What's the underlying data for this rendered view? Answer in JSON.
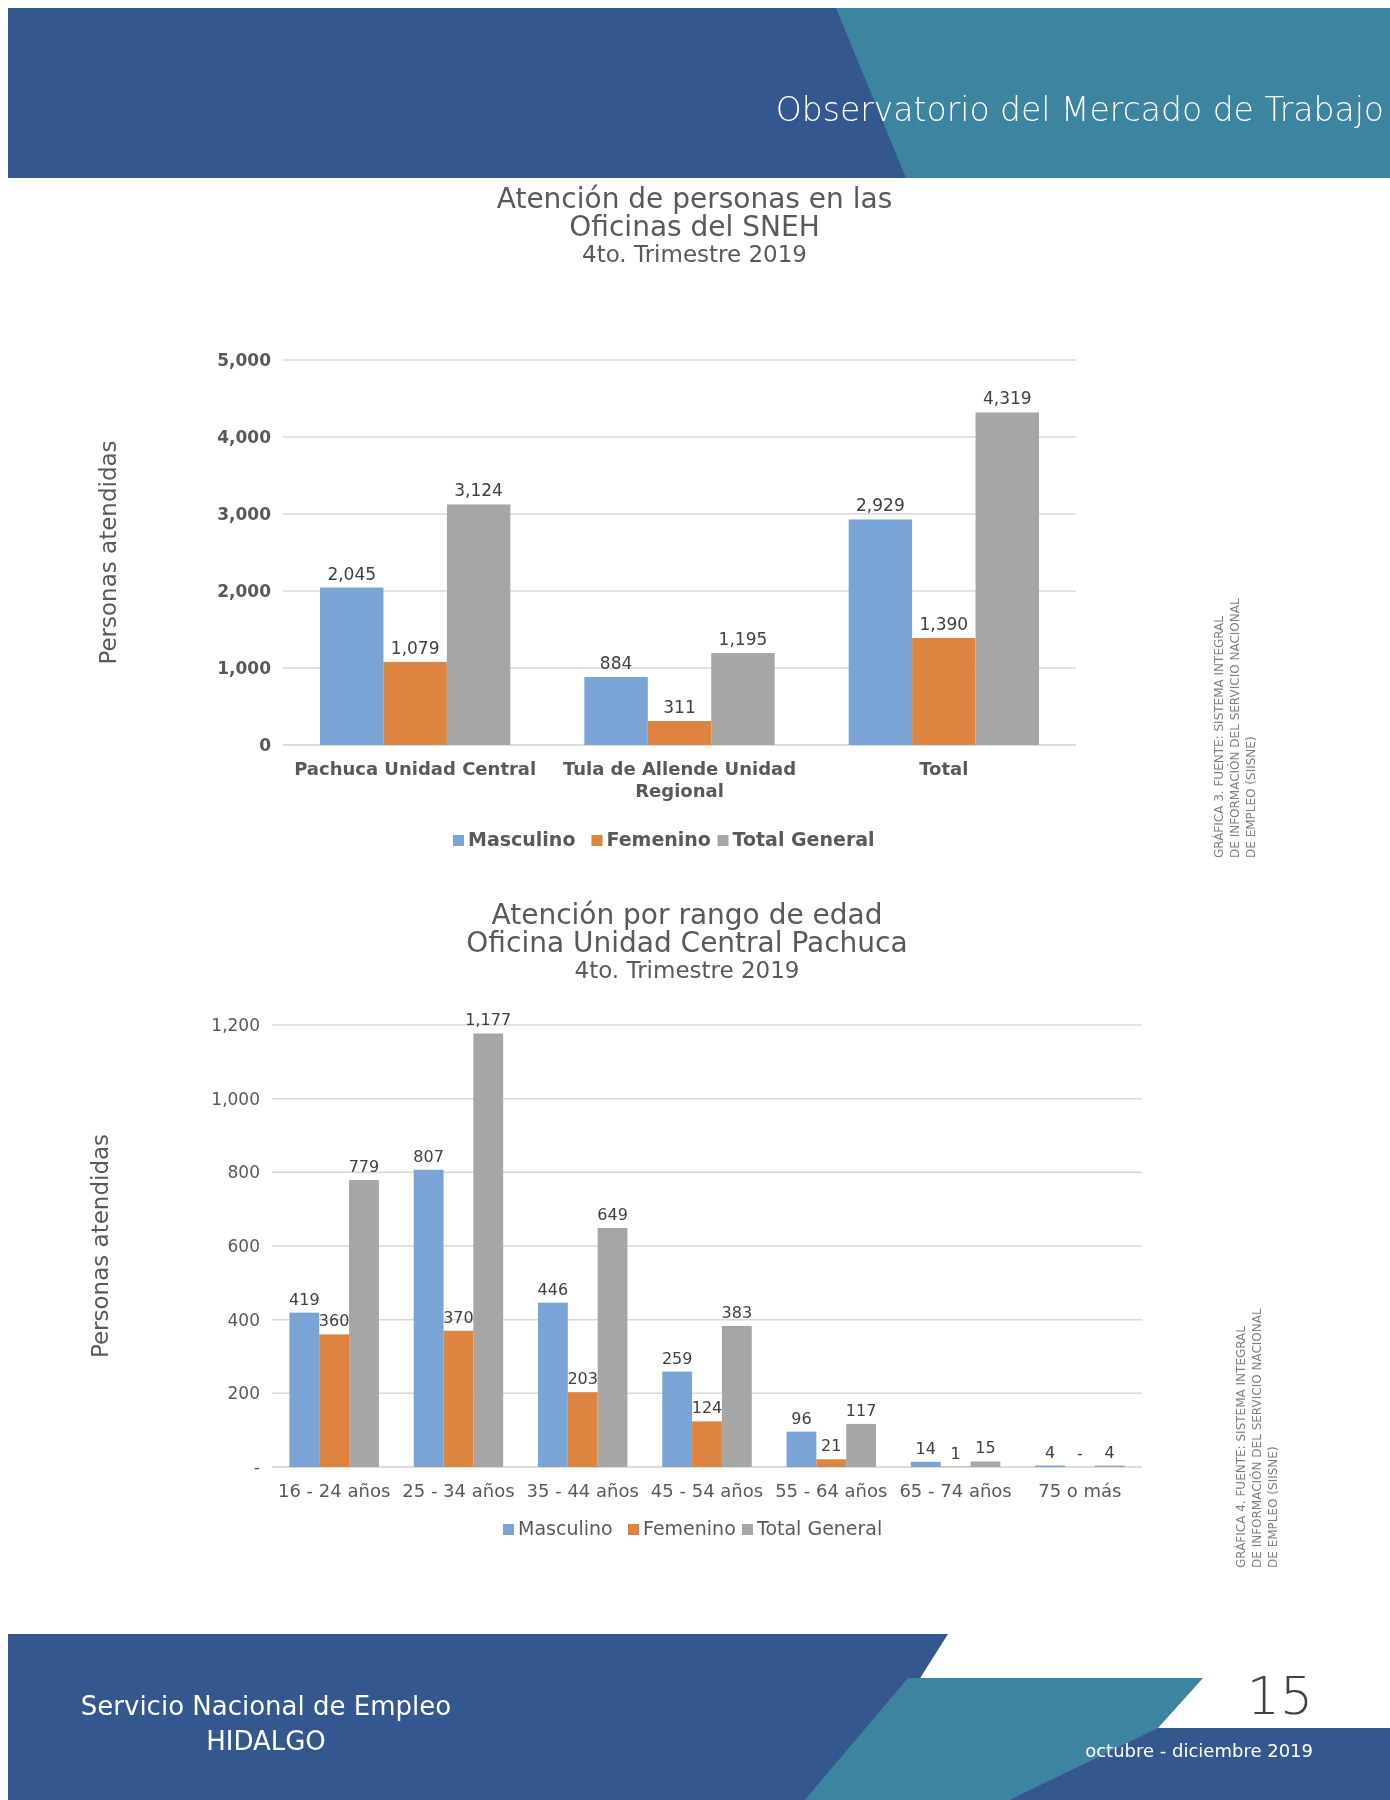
{
  "chart_data": [
    {
      "type": "bar",
      "title": "Atención de personas en las\nOficinas del SNEH",
      "subtitle": "4to. Trimestre 2019",
      "ylabel": "Personas atendidas",
      "categories": [
        "Pachuca Unidad Central",
        "Tula de Allende Unidad Regional",
        "Total"
      ],
      "series": [
        {
          "name": "Masculino",
          "color": "#7aa3d6",
          "values": [
            2045,
            884,
            2929
          ],
          "value_labels": [
            "2,045",
            "884",
            "2,929"
          ]
        },
        {
          "name": "Femenino",
          "color": "#dd8440",
          "values": [
            1079,
            311,
            1390
          ],
          "value_labels": [
            "1,079",
            "311",
            "1,390"
          ]
        },
        {
          "name": "Total General",
          "color": "#a6a6a6",
          "values": [
            3124,
            1195,
            4319
          ],
          "value_labels": [
            "3,124",
            "1,195",
            "4,319"
          ]
        }
      ],
      "ylim": [
        0,
        5000
      ],
      "yticks": [
        {
          "value": 0,
          "label": "0"
        },
        {
          "value": 1000,
          "label": "1,000"
        },
        {
          "value": 2000,
          "label": "2,000"
        },
        {
          "value": 3000,
          "label": "3,000"
        },
        {
          "value": 4000,
          "label": "4,000"
        },
        {
          "value": 5000,
          "label": "5,000"
        }
      ],
      "grid": "y",
      "legend": "bottom",
      "annotations": [
        "Observatorio del Mercado de Trabajo",
        "Servicio Nacional de Empleo\nHIDALGO",
        "15",
        "octubre - diciembre 2019",
        "GRÁFICA 3. FUENTE: SISTEMA INTEGRAL\nDE INFORMACIÓN DEL SERVICIO NACIONAL\nDE EMPLEO (SIISNE)"
      ]
    },
    {
      "type": "bar",
      "title": "Atención por rango de edad\nOficina Unidad Central Pachuca",
      "subtitle": "4to. Trimestre 2019",
      "ylabel": "Personas atendidas",
      "categories": [
        "16 - 24 años",
        "25 - 34 años",
        "35 - 44 años",
        "45 - 54 años",
        "55 - 64 años",
        "65 - 74 años",
        "75 o más"
      ],
      "series": [
        {
          "name": "Masculino",
          "color": "#7aa3d6",
          "values": [
            419,
            807,
            446,
            259,
            96,
            14,
            4
          ],
          "value_labels": [
            "419",
            "807",
            "446",
            "259",
            "96",
            "14",
            "4"
          ]
        },
        {
          "name": "Femenino",
          "color": "#dd8440",
          "values": [
            360,
            370,
            203,
            124,
            21,
            1,
            0
          ],
          "value_labels": [
            "360",
            "370",
            "203",
            "124",
            "21",
            "1",
            "-"
          ]
        },
        {
          "name": "Total General",
          "color": "#a6a6a6",
          "values": [
            779,
            1177,
            649,
            383,
            117,
            15,
            4
          ],
          "value_labels": [
            "779",
            "1,177",
            "649",
            "383",
            "117",
            "15",
            "4"
          ]
        }
      ],
      "ylim": [
        0,
        1200
      ],
      "yticks": [
        {
          "value": 0,
          "label": "-"
        },
        {
          "value": 200,
          "label": "200"
        },
        {
          "value": 400,
          "label": "400"
        },
        {
          "value": 600,
          "label": "600"
        },
        {
          "value": 800,
          "label": "800"
        },
        {
          "value": 1000,
          "label": "1,000"
        },
        {
          "value": 1200,
          "label": "1,200"
        }
      ],
      "grid": "y",
      "legend": "bottom",
      "annotations": [
        "GRÁFICA 4. FUENTE: SISTEMA INTEGRAL\nDE INFORMACIÓN DEL SERVICIO NACIONAL\nDE EMPLEO (SIISNE)"
      ]
    }
  ]
}
